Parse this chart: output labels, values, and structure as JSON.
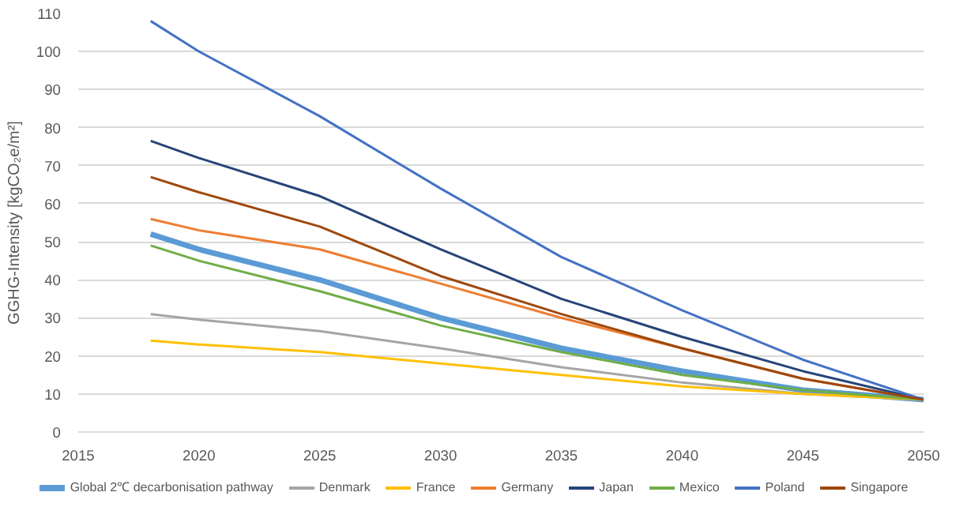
{
  "chart_data": {
    "type": "line",
    "ylabel": "GGHG-Intensity [kgCO₂e/m²]",
    "x": [
      2018,
      2020,
      2025,
      2030,
      2035,
      2040,
      2045,
      2050
    ],
    "xlim": [
      2015,
      2050
    ],
    "xticks": [
      2015,
      2020,
      2025,
      2030,
      2035,
      2040,
      2045,
      2050
    ],
    "ylim": [
      0,
      110
    ],
    "yticks": [
      0,
      10,
      20,
      30,
      40,
      50,
      60,
      70,
      80,
      90,
      100,
      110
    ],
    "grid": "y",
    "legend": "bottom",
    "marker": "none",
    "line_style": "solid",
    "series": [
      {
        "name": "Global 2℃ decarbonisation pathway",
        "color": "#5b9bd5",
        "values": [
          52,
          48,
          40,
          30,
          22,
          16,
          11,
          8.5
        ]
      },
      {
        "name": "Denmark",
        "color": "#a5a5a5",
        "values": [
          31,
          29.5,
          26.5,
          22,
          17,
          13,
          10,
          8.5
        ]
      },
      {
        "name": "France",
        "color": "#ffc000",
        "values": [
          24,
          23,
          21,
          18,
          15,
          12,
          10,
          8.5
        ]
      },
      {
        "name": "Germany",
        "color": "#ed7d31",
        "values": [
          56,
          53,
          48,
          39,
          30,
          22,
          14,
          8.5
        ]
      },
      {
        "name": "Japan",
        "color": "#264478",
        "values": [
          76.5,
          72,
          62,
          48,
          35,
          25,
          16,
          8.5
        ]
      },
      {
        "name": "Mexico",
        "color": "#70ad47",
        "values": [
          49,
          45,
          37,
          28,
          21,
          15,
          11,
          8.5
        ]
      },
      {
        "name": "Poland",
        "color": "#4472c4",
        "values": [
          108,
          100,
          83,
          64,
          46,
          32,
          19,
          8.5
        ]
      },
      {
        "name": "Singapore",
        "color": "#9e480e",
        "values": [
          67,
          63,
          54,
          41,
          31,
          22,
          14,
          8.5
        ]
      }
    ]
  }
}
